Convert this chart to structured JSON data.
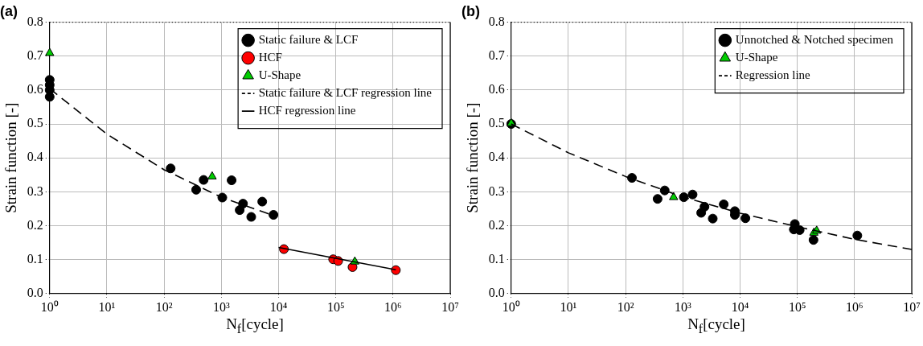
{
  "chart_data": [
    {
      "type": "scatter",
      "title": "(a)",
      "xlabel": "N$_{f}$[cycle]",
      "ylabel": "Strain function [-]",
      "log": "x",
      "grid": true,
      "legend": "top right",
      "xlim": [
        1,
        10000000
      ],
      "xticks": [
        {
          "value": 1,
          "label": "10⁰"
        },
        {
          "value": 10,
          "label": "10¹"
        },
        {
          "value": 100,
          "label": "10²"
        },
        {
          "value": 1000,
          "label": "10³"
        },
        {
          "value": 10000,
          "label": "10⁴"
        },
        {
          "value": 100000,
          "label": "10⁵"
        },
        {
          "value": 1000000,
          "label": "10⁶"
        },
        {
          "value": 10000000,
          "label": "10⁷"
        }
      ],
      "ylim": [
        0,
        0.8
      ],
      "yticks": [
        {
          "value": 0,
          "label": "0.0"
        },
        0.1,
        0.2,
        0.3,
        0.4,
        0.5,
        0.6,
        0.7,
        0.8
      ],
      "series": [
        {
          "name": "Static failure & LCF",
          "type": "scatter",
          "marker": "circle",
          "color": "#000000",
          "x": [
            1,
            1,
            1,
            1,
            130,
            363,
            490,
            1510,
            1040,
            2390,
            2090,
            3330,
            5180,
            8140
          ],
          "values": [
            0.63,
            0.615,
            0.6,
            0.58,
            0.369,
            0.306,
            0.335,
            0.334,
            0.283,
            0.265,
            0.246,
            0.226,
            0.271,
            0.232
          ]
        },
        {
          "name": "HCF",
          "type": "scatter",
          "marker": "circle",
          "color": "#ff0000",
          "x": [
            12400,
            90000,
            110000,
            196000,
            1120000
          ],
          "values": [
            0.131,
            0.101,
            0.096,
            0.078,
            0.069
          ]
        },
        {
          "name": "U-Shape",
          "type": "scatter",
          "marker": "triangle",
          "color": "#00cc00",
          "x": [
            1,
            690,
            215000
          ],
          "values": [
            0.709,
            0.345,
            0.094
          ]
        },
        {
          "name": "Static failure & LCF regression line",
          "type": "line",
          "marker": "none",
          "line_style": "dashed",
          "color": "#000000",
          "x": [
            1,
            10,
            100,
            1000,
            8700
          ],
          "values": [
            0.604,
            0.47,
            0.365,
            0.284,
            0.228
          ]
        },
        {
          "name": "HCF regression line",
          "type": "line",
          "marker": "none",
          "line_style": "solid",
          "color": "#000000",
          "x": [
            10000,
            1120000
          ],
          "values": [
            0.136,
            0.07
          ]
        }
      ]
    },
    {
      "type": "scatter",
      "title": "(b)",
      "xlabel": "N$_{f}$[cycle]",
      "ylabel": "Strain function [-]",
      "log": "x",
      "grid": true,
      "legend": "top right",
      "xlim": [
        1,
        10000000
      ],
      "xticks": [
        {
          "value": 1,
          "label": "10⁰"
        },
        {
          "value": 10,
          "label": "10¹"
        },
        {
          "value": 100,
          "label": "10²"
        },
        {
          "value": 1000,
          "label": "10³"
        },
        {
          "value": 10000,
          "label": "10⁴"
        },
        {
          "value": 100000,
          "label": "10⁵"
        },
        {
          "value": 1000000,
          "label": "10⁶"
        },
        {
          "value": 10000000,
          "label": "10⁷"
        }
      ],
      "ylim": [
        0,
        0.8
      ],
      "yticks": [
        {
          "value": 0,
          "label": "0.0"
        },
        0.1,
        0.2,
        0.3,
        0.4,
        0.5,
        0.6,
        0.7,
        0.8
      ],
      "series": [
        {
          "name": "Unnotched & Notched specimen",
          "type": "scatter",
          "marker": "circle",
          "color": "#000000",
          "x": [
            1,
            129,
            362,
            482,
            1040,
            1480,
            2390,
            2090,
            3330,
            5180,
            8100,
            8100,
            12400,
            90600,
            87000,
            110000,
            192000,
            1120000
          ],
          "values": [
            0.5,
            0.341,
            0.279,
            0.304,
            0.284,
            0.292,
            0.256,
            0.238,
            0.221,
            0.263,
            0.243,
            0.232,
            0.222,
            0.205,
            0.189,
            0.187,
            0.158,
            0.171
          ]
        },
        {
          "name": "U-Shape",
          "type": "scatter",
          "marker": "triangle",
          "color": "#00cc00",
          "x": [
            1,
            690,
            195000,
            218000
          ],
          "values": [
            0.502,
            0.284,
            0.179,
            0.185
          ]
        },
        {
          "name": "Regression line",
          "type": "line",
          "marker": "none",
          "line_style": "dashed",
          "color": "#000000",
          "x": [
            1,
            10,
            100,
            1000,
            10000,
            100000,
            1000000,
            10000000
          ],
          "values": [
            0.5,
            0.415,
            0.345,
            0.285,
            0.237,
            0.197,
            0.16,
            0.13
          ]
        }
      ]
    }
  ]
}
